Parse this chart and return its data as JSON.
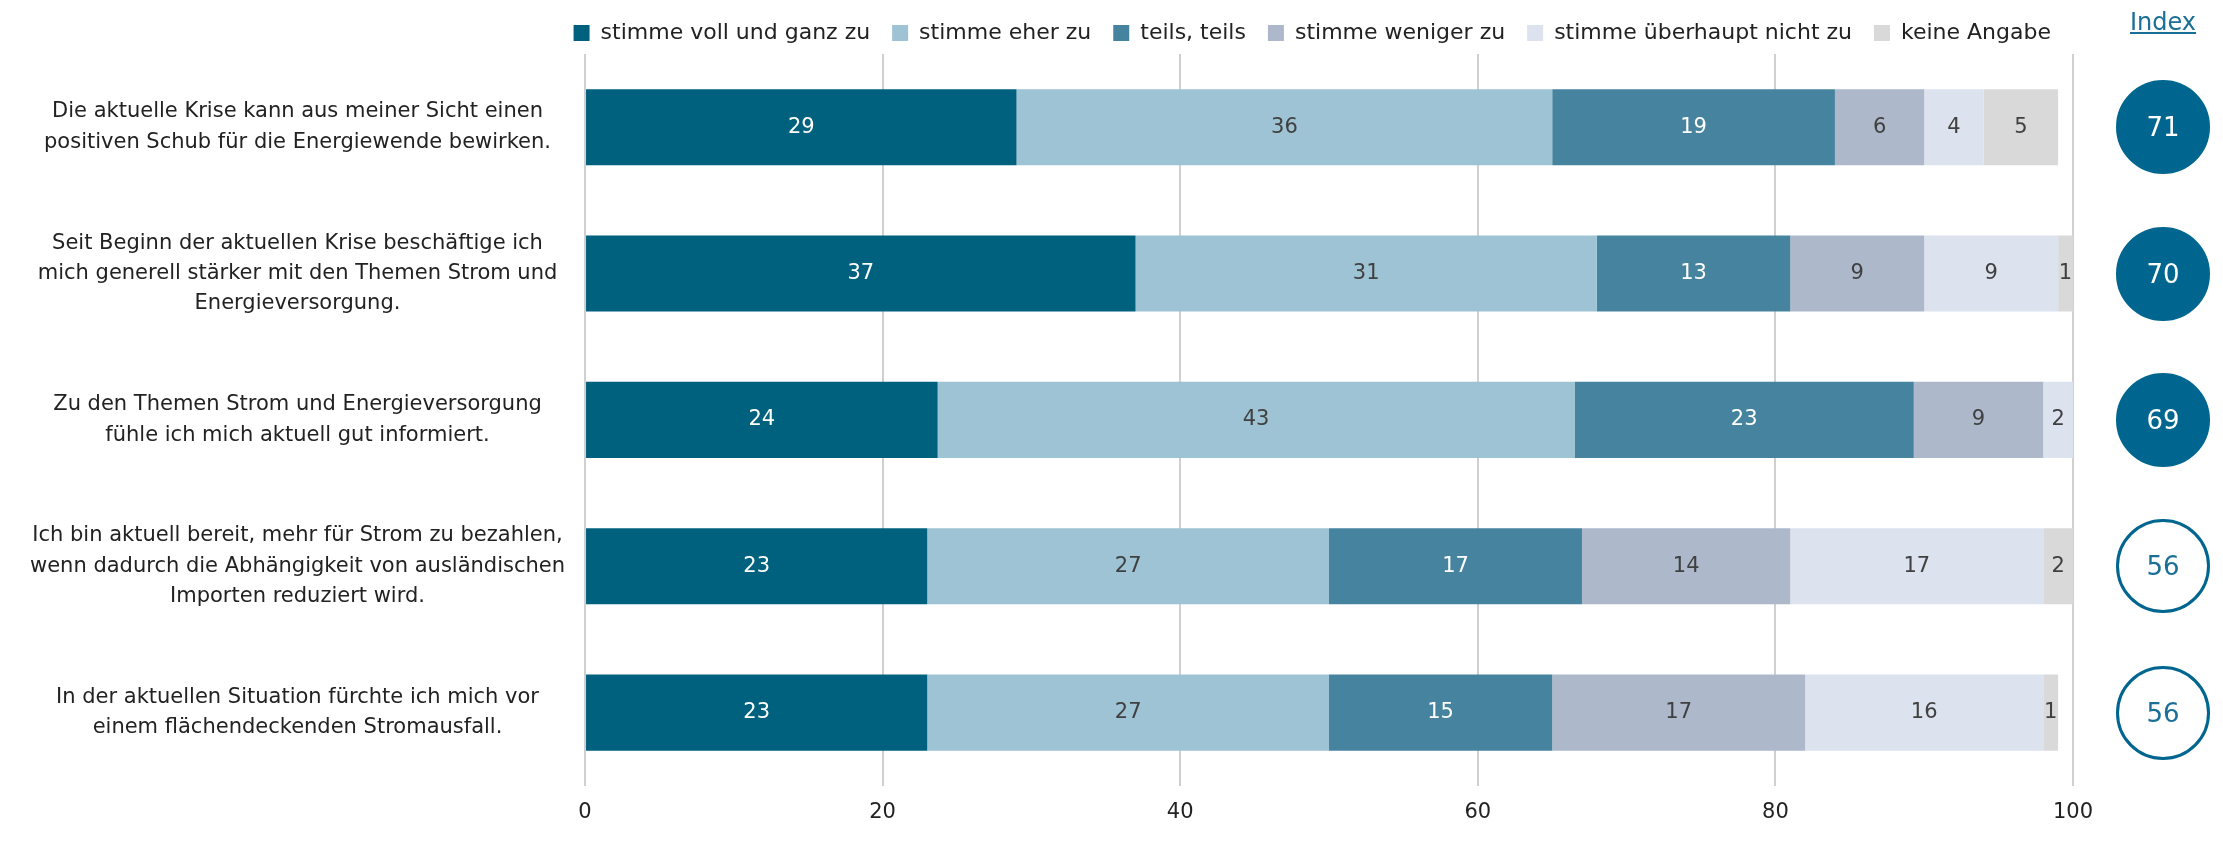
{
  "chart_data": {
    "type": "bar",
    "orientation": "horizontal",
    "stacked": true,
    "grid": "x",
    "legend": "top",
    "categories": [
      "Die aktuelle Krise kann aus meiner Sicht einen positiven Schub für die Energiewende bewirken.",
      "Seit Beginn der aktuellen Krise beschäftige ich mich generell stärker mit den Themen Strom und Energieversorgung.",
      "Zu den Themen Strom und Energieversorgung fühle ich mich aktuell gut informiert.",
      "Ich bin aktuell bereit, mehr für Strom zu bezahlen, wenn dadurch die Abhängigkeit von ausländischen Importen reduziert wird.",
      "In der aktuellen Situation fürchte ich mich vor einem flächendeckenden Stromausfall."
    ],
    "series": [
      {
        "name": "stimme voll und ganz zu",
        "color": "#00617f",
        "values": [
          29,
          37,
          23.7,
          23,
          23
        ],
        "value_labels": [
          "29",
          "37",
          "24",
          "23",
          "23"
        ]
      },
      {
        "name": "stimme eher zu",
        "color": "#9dc3d4",
        "values": [
          36,
          31,
          42.8,
          27,
          27
        ],
        "value_labels": [
          "36",
          "31",
          "43",
          "27",
          "27"
        ]
      },
      {
        "name": "teils, teils",
        "color": "#46839f",
        "values": [
          19,
          13,
          22.8,
          17,
          15
        ],
        "value_labels": [
          "19",
          "13",
          "23",
          "17",
          "15"
        ]
      },
      {
        "name": "stimme weniger zu",
        "color": "#adb9cb",
        "values": [
          6,
          9,
          8.7,
          14,
          17
        ],
        "value_labels": [
          "6",
          "9",
          "9",
          "14",
          "17"
        ]
      },
      {
        "name": "stimme überhaupt nicht zu",
        "color": "#dde2ef",
        "values": [
          4,
          9,
          2,
          17,
          16
        ],
        "value_labels": [
          "4",
          "9",
          "2",
          "17",
          "16"
        ]
      },
      {
        "name": "keine Angabe",
        "color": "#d9d9d9",
        "values": [
          5,
          1,
          null,
          2,
          1
        ],
        "value_labels": [
          "5",
          "1",
          null,
          "2",
          "1"
        ]
      }
    ],
    "xlim": [
      0,
      100
    ],
    "xticks": [
      0,
      20,
      40,
      60,
      80,
      100
    ],
    "annotations": [
      "Index",
      "71",
      "70",
      "69",
      "56",
      "56"
    ]
  }
}
